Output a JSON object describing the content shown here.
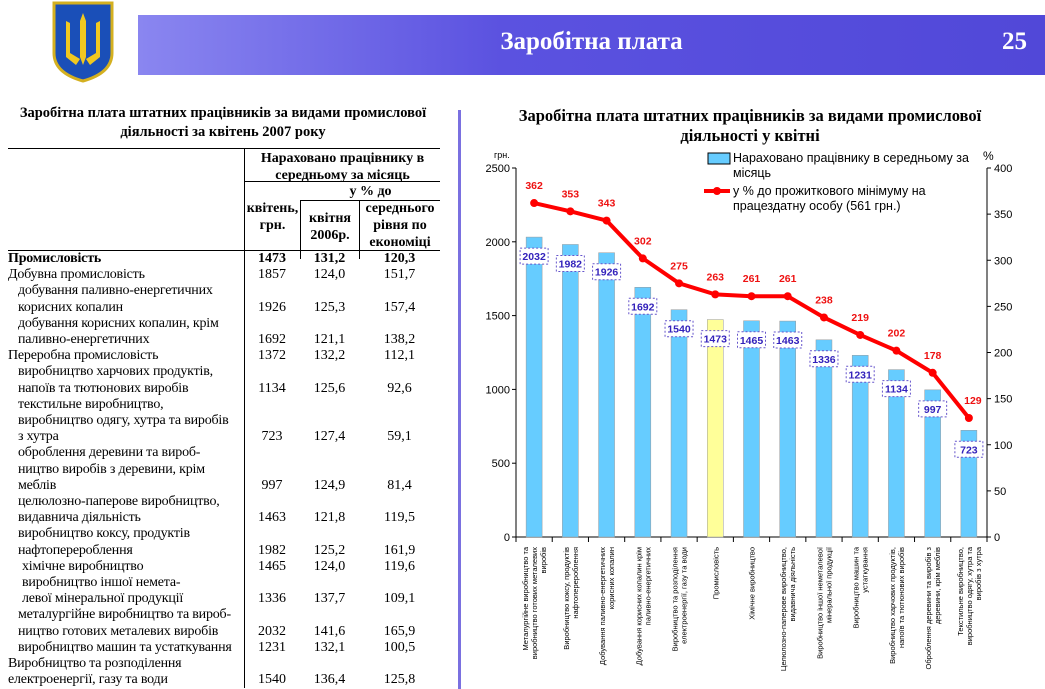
{
  "header": {
    "title": "Заробітна плата",
    "page_number": "25"
  },
  "table": {
    "title": "Заробітна плата штатних працівників за видами промислової діяльності  за квітень 2007 року",
    "header_group": "Нараховано працівнику в середньому за місяць",
    "header_pct": "у % до",
    "columns": [
      "квітень, грн.",
      "квітня 2006р.",
      "середнього рівня по економіці"
    ],
    "rows": [
      {
        "lines": [
          "Промисловість"
        ],
        "values": [
          "1473",
          "131,2",
          "120,3"
        ],
        "bold": true,
        "indent": 0
      },
      {
        "lines": [
          "Добувна промисловість"
        ],
        "values": [
          "1857",
          "124,0",
          "151,7"
        ],
        "indent": 0
      },
      {
        "lines": [
          "добування паливно-енергетичних",
          "корисних копалин"
        ],
        "values": [
          "1926",
          "125,3",
          "157,4"
        ],
        "indent": 1
      },
      {
        "lines": [
          "добування корисних копалин, крім",
          "паливно-енергетичних"
        ],
        "values": [
          "1692",
          "121,1",
          "138,2"
        ],
        "indent": 1
      },
      {
        "lines": [
          "Переробна промисловість"
        ],
        "values": [
          "1372",
          "132,2",
          "112,1"
        ],
        "indent": 0
      },
      {
        "lines": [
          "виробництво харчових продуктів,",
          "напоїв та тютюнових виробів"
        ],
        "values": [
          "1134",
          "125,6",
          "92,6"
        ],
        "indent": 1
      },
      {
        "lines": [
          "текстильне виробництво,",
          "виробництво одягу, хутра та виробів",
          "з хутра"
        ],
        "values": [
          "723",
          "127,4",
          "59,1"
        ],
        "indent": 1
      },
      {
        "lines": [
          "оброблення деревини та вироб-",
          "ництво виробів з деревини, крім",
          "меблів"
        ],
        "values": [
          "997",
          "124,9",
          "81,4"
        ],
        "indent": 1
      },
      {
        "lines": [
          "целюлозно-паперове виробництво,",
          "видавнича діяльність"
        ],
        "values": [
          "1463",
          "121,8",
          "119,5"
        ],
        "indent": 1
      },
      {
        "lines": [
          "виробництво коксу, продуктів",
          "нафтоперероблення"
        ],
        "values": [
          "1982",
          "125,2",
          "161,9"
        ],
        "indent": 1
      },
      {
        "lines": [
          "хімічне виробництво"
        ],
        "values": [
          "1465",
          "124,0",
          "119,6"
        ],
        "indent": 2
      },
      {
        "lines": [
          "виробництво іншої немета-",
          "левої мінеральної продукції"
        ],
        "values": [
          "1336",
          "137,7",
          "109,1"
        ],
        "indent": 2
      },
      {
        "lines": [
          "металургійне виробництво та вироб-",
          "ництво готових металевих виробів"
        ],
        "values": [
          "2032",
          "141,6",
          "165,9"
        ],
        "indent": 1
      },
      {
        "lines": [
          "виробництво машин та устаткування"
        ],
        "values": [
          "1231",
          "132,1",
          "100,5"
        ],
        "indent": 1
      },
      {
        "lines": [
          "Виробництво та розподілення",
          "електроенергії, газу та води"
        ],
        "values": [
          "1540",
          "136,4",
          "125,8"
        ],
        "indent": 0
      }
    ]
  },
  "chart_data": {
    "type": "bar+line",
    "title": "Заробітна плата штатних працівників за видами промислової діяльності у квітні",
    "ylabel_left": "грн.",
    "ylabel_right": "%",
    "ylim_left": [
      0,
      2500
    ],
    "yticks_left": [
      0,
      500,
      1000,
      1500,
      2000,
      2500
    ],
    "ylim_right": [
      0,
      400
    ],
    "yticks_right": [
      0,
      50,
      100,
      150,
      200,
      250,
      300,
      350,
      400
    ],
    "legend_placement": "top-right",
    "categories": [
      "Металургійне виробництво та виробництво готових металевих виробів",
      "Виробництво коксу, продуктів нафтоперероблення",
      "Добування паливно-енергетичних корисних копалин",
      "Добування корисних копалин крім паливно-енергетичних",
      "Виробництво та розподілення електроенергії, газу та води",
      "Промисловість",
      "Хімічне виробництво",
      "Целюлозно-паперове виробництво, видавнича діяльність",
      "Виробництво іншої неметалевої мінеральної продукції",
      "Виробництво машин та устаткування",
      "Виробництво харчових продуктів, напоїв та тютюнових виробів",
      "Оброблення деревини та виробів з деревини, крім меблів",
      "Текстильне виробництво, виробництво одягу, хутра та виробів з хутра"
    ],
    "series": [
      {
        "name": "Нараховано працівнику в середньому за місяць",
        "axis": "left",
        "type": "bar",
        "color": "#66ccff",
        "highlight_color": "#ffff99",
        "highlight_index": 5,
        "values": [
          2032,
          1982,
          1926,
          1692,
          1540,
          1473,
          1465,
          1463,
          1336,
          1231,
          1134,
          997,
          723
        ]
      },
      {
        "name": "у % до прожиткового мінімуму на працездатну особу (561 грн.)",
        "axis": "right",
        "type": "line",
        "color": "#ff0000",
        "values": [
          362,
          353,
          343,
          302,
          275,
          263,
          261,
          261,
          238,
          219,
          202,
          178,
          129
        ]
      }
    ]
  }
}
